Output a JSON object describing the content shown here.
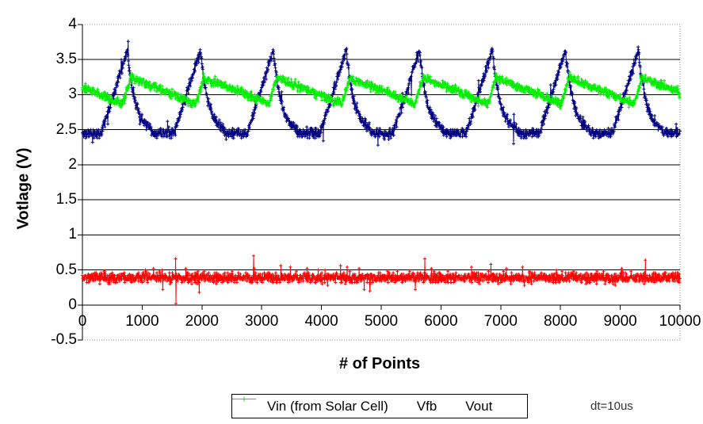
{
  "chart_data": {
    "type": "line",
    "title": "",
    "xlabel": "# of Points",
    "ylabel": "Votlage (V)",
    "annotation": "dt=10us",
    "xlim": [
      0,
      10000
    ],
    "ylim": [
      -0.5,
      4
    ],
    "grid": "horizontal major lines every 0.5 V, plot frame dotted gray on top/right/bottom",
    "legend_position": "bottom-center, horizontal, black border",
    "x_ticks": [
      {
        "v": 0,
        "label": "0"
      },
      {
        "v": 1000,
        "label": "1000"
      },
      {
        "v": 2000,
        "label": "2000"
      },
      {
        "v": 3000,
        "label": "3000"
      },
      {
        "v": 4000,
        "label": "4000"
      },
      {
        "v": 5000,
        "label": "5000"
      },
      {
        "v": 6000,
        "label": "6000"
      },
      {
        "v": 7000,
        "label": "7000"
      },
      {
        "v": 8000,
        "label": "8000"
      },
      {
        "v": 9000,
        "label": "9000"
      },
      {
        "v": 10000,
        "label": "10000"
      }
    ],
    "y_ticks": [
      {
        "v": 4,
        "label": "4"
      },
      {
        "v": 3.5,
        "label": "3.5"
      },
      {
        "v": 3,
        "label": "3"
      },
      {
        "v": 2.5,
        "label": "2.5"
      },
      {
        "v": 2,
        "label": "2"
      },
      {
        "v": 1.5,
        "label": "1.5"
      },
      {
        "v": 1,
        "label": "1"
      },
      {
        "v": 0.5,
        "label": "0.5"
      },
      {
        "v": 0,
        "label": "0"
      },
      {
        "v": -0.5,
        "label": "-0.5"
      }
    ],
    "sampling": {
      "source_points": 10000,
      "render_step": 5,
      "seed": 11,
      "quantize_v": 0.02
    },
    "series": [
      {
        "name": "Vin (from Solar Cell)",
        "color": "#000080",
        "marker": "plus",
        "model": "relaxation",
        "pattern": {
          "description": "solar-cell charge/dump oscillation: flat floor, linear rise to sharp peak, exponential fall",
          "baseline_v": 2.45,
          "peak_v": 3.63,
          "first_peak_x": 752,
          "period_x": 1222,
          "rise_points": 440,
          "fall_points": 400,
          "fall_tau_points": 135,
          "noise_v": 0.035,
          "spike_prob": 0.008,
          "spike_v": 0.16
        }
      },
      {
        "name": "Vfb",
        "color": "#FF0000",
        "marker": "plus",
        "model": "flat",
        "pattern": {
          "description": "feedback voltage, flat noisy band",
          "level_v": 0.39,
          "noise_v": 0.035,
          "spike_prob": 0.03,
          "spike_v": 0.1,
          "outliers": [
            {
              "x": 1560,
              "v": 0.66
            },
            {
              "x": 1565,
              "v": 0.02
            },
            {
              "x": 2865,
              "v": 0.7
            },
            {
              "x": 5730,
              "v": 0.66
            },
            {
              "x": 9420,
              "v": 0.64
            }
          ]
        }
      },
      {
        "name": "Vout",
        "color": "#00EE00",
        "marker": "plus",
        "model": "sawtooth",
        "pattern": {
          "description": "boost-converter output ripple: fast rise at Vin peak, slow decay between peaks",
          "min_v": 2.86,
          "max_v": 3.24,
          "knee_v": 3.0,
          "first_peak_x": 752,
          "period_x": 1222,
          "rise_start_offset": -80,
          "rise_end_offset": 60,
          "knee_offset": 780,
          "noise_v": 0.03
        }
      }
    ]
  }
}
